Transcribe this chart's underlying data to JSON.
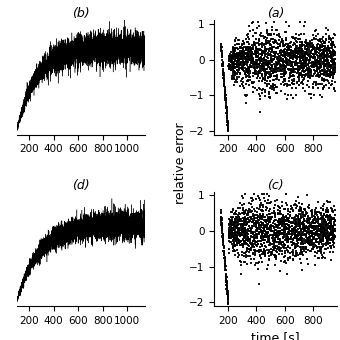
{
  "title_b": "(b)",
  "title_a": "(a)",
  "title_d": "(d)",
  "title_c": "(c)",
  "ylabel_right": "relative error",
  "xlabel_bottom": "time [s]",
  "xlim_left": [
    100,
    1150
  ],
  "xlim_right": [
    100,
    970
  ],
  "ylim_left": [
    -0.02,
    0.4
  ],
  "ylim_right": [
    -2.1,
    1.1
  ],
  "xticks_left": [
    200,
    400,
    600,
    800,
    1000
  ],
  "xticks_right": [
    200,
    400,
    600,
    800
  ],
  "yticks_right": [
    -2,
    -1,
    0,
    1
  ],
  "n_points_curve": 5000,
  "n_points_scatter": 2000,
  "background": "#ffffff",
  "curve_color": "#000000",
  "scatter_color": "#000000",
  "title_fontsize": 9,
  "label_fontsize": 9,
  "tick_fontsize": 7.5
}
